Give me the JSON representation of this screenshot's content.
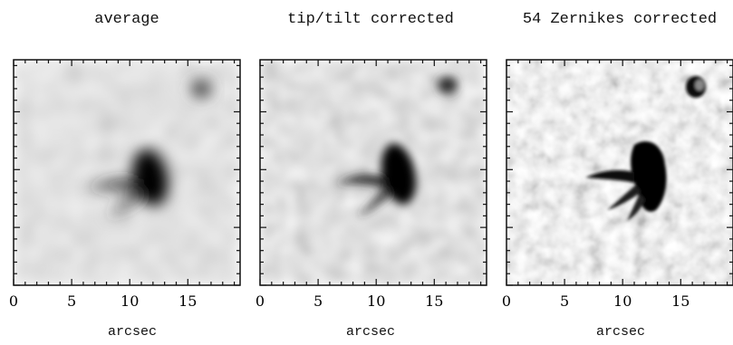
{
  "figure": {
    "axis_ticks": [
      "0",
      "5",
      "10",
      "15"
    ],
    "axis_label": "arcsec",
    "x_range": [
      0,
      19.5
    ],
    "colormap": "grayscale",
    "panels": [
      {
        "title": "average",
        "blur": 7,
        "contrast": 0.45
      },
      {
        "title": "tip/tilt corrected",
        "blur": 5,
        "contrast": 0.6
      },
      {
        "title": "54 Zernikes corrected",
        "blur": 1.3,
        "contrast": 1.0
      }
    ]
  }
}
